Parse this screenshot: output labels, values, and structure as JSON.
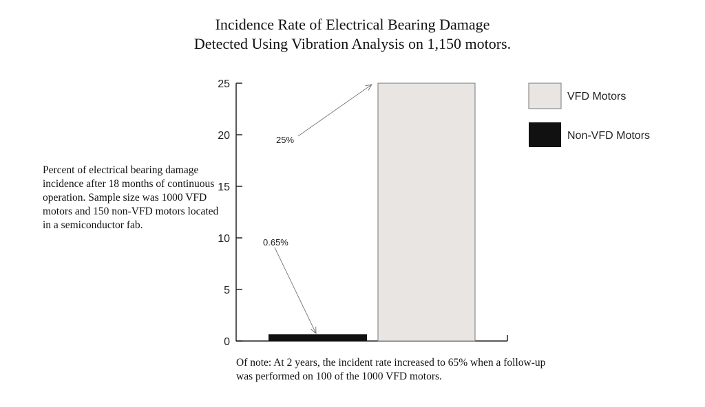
{
  "chart_data": {
    "type": "bar",
    "title": "Incidence Rate of Electrical Bearing Damage",
    "subtitle": "Detected Using Vibration Analysis on 1,150 motors.",
    "categories": [
      "Non-VFD Motors",
      "VFD Motors"
    ],
    "series": [
      {
        "name": "Non-VFD Motors",
        "values": [
          0.65,
          null
        ],
        "color": "#111111"
      },
      {
        "name": "VFD Motors",
        "values": [
          null,
          25
        ],
        "color": "#e8e5e2"
      }
    ],
    "ylim": [
      0,
      25
    ],
    "yticks": [
      0,
      5,
      10,
      15,
      20,
      25
    ],
    "xlabel": "",
    "ylabel": "",
    "grid": false,
    "legend_position": "right",
    "annotations": {
      "non_vfd": "0.65%",
      "vfd": "25%"
    },
    "side_text": "Percent of electrical bearing damage incidence after 18 months of continuous operation.  Sample size was 1000 VFD motors and 150 non-VFD motors located in a semiconductor fab.",
    "note": "Of note: At 2 years, the incident rate increased to 65% when a follow-up was performed on 100 of the 1000 VFD motors."
  }
}
